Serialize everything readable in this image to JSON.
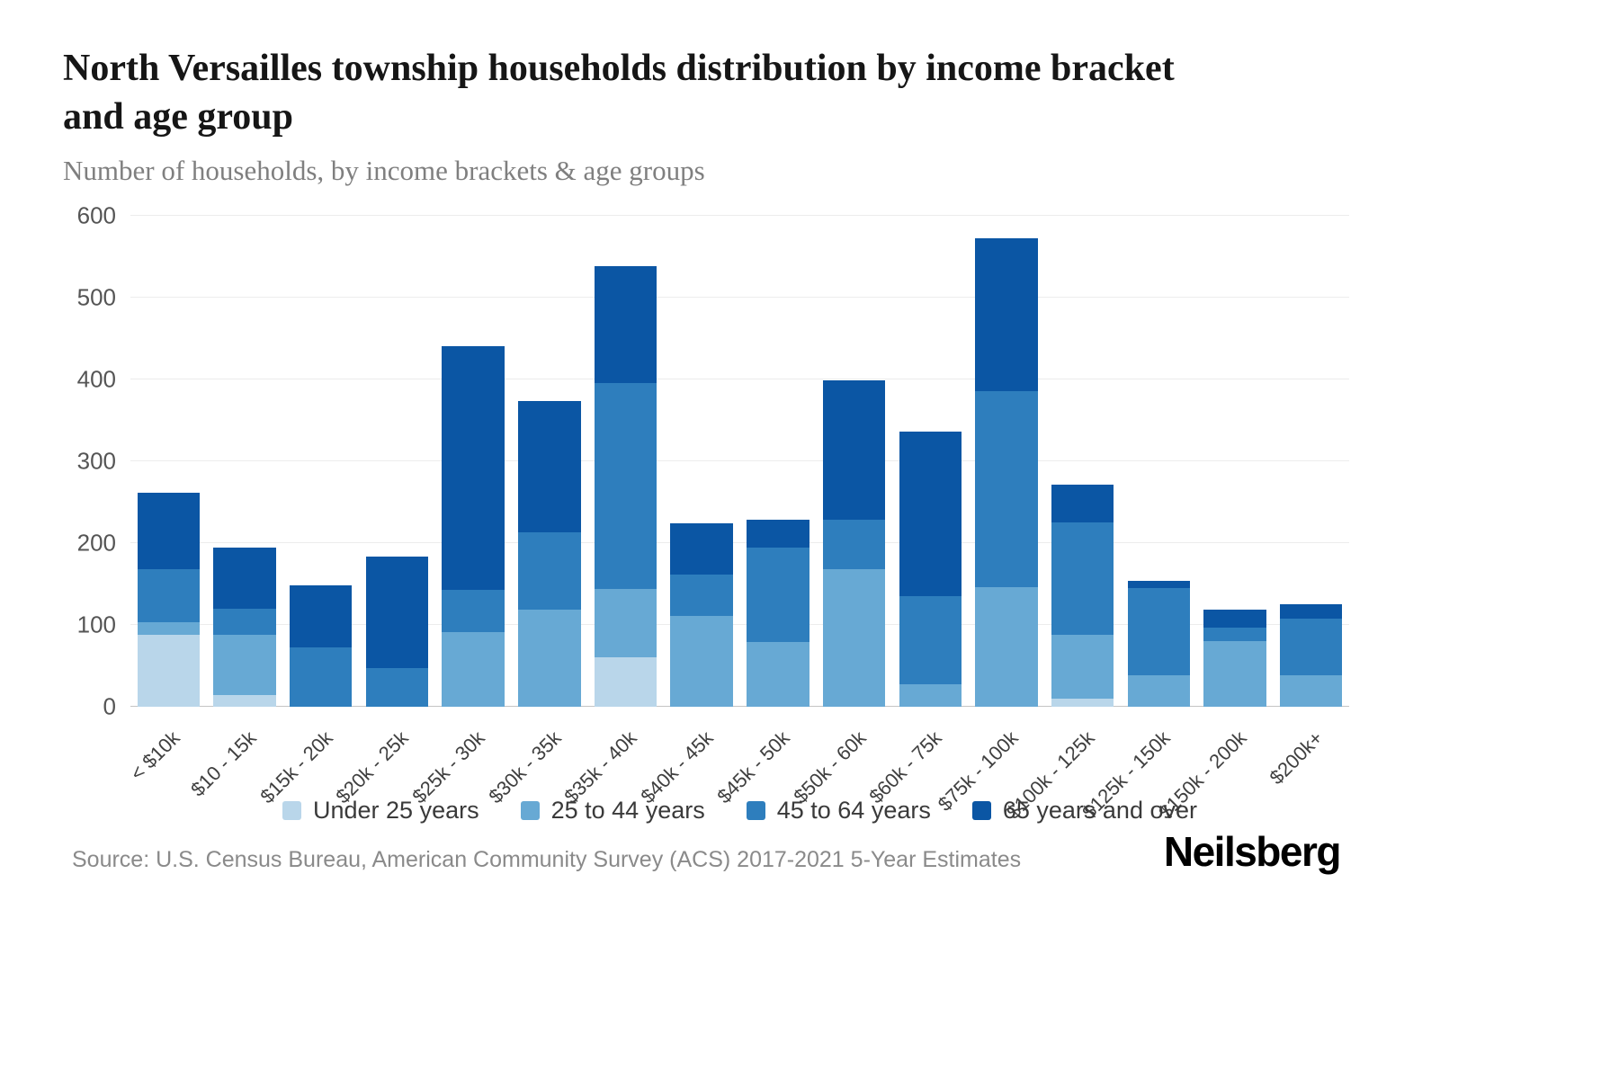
{
  "title": "North Versailles township households distribution by income bracket and age group",
  "subtitle": "Number of households, by income brackets & age groups",
  "source": "Source: U.S. Census Bureau, American Community Survey (ACS) 2017-2021 5-Year Estimates",
  "logo": "Neilsberg",
  "colors": {
    "under_25": "#b9d6ea",
    "25_to_44": "#67a9d4",
    "45_to_64": "#2e7ebd",
    "65_and_over": "#0b56a4",
    "gridline": "#ececec",
    "axis_text": "#555555"
  },
  "chart_data": {
    "type": "bar",
    "stacked": true,
    "title": "North Versailles township households distribution by income bracket and age group",
    "xlabel": "",
    "ylabel": "Number of households",
    "ylim": [
      0,
      600
    ],
    "yticks": [
      0,
      100,
      200,
      300,
      400,
      500,
      600
    ],
    "grid": true,
    "legend_position": "bottom",
    "categories": [
      "< $10k",
      "$10 - 15k",
      "$15k - 20k",
      "$20k - 25k",
      "$25k - 30k",
      "$30k - 35k",
      "$35k - 40k",
      "$40k - 45k",
      "$45k - 50k",
      "$50k - 60k",
      "$60k - 75k",
      "$75k - 100k",
      "$100k - 125k",
      "$125k - 150k",
      "$150k - 200k",
      "$200k+"
    ],
    "series": [
      {
        "name": "Under 25 years",
        "color": "#b9d6ea",
        "values": [
          88,
          14,
          0,
          0,
          0,
          0,
          60,
          0,
          0,
          0,
          0,
          0,
          10,
          0,
          0,
          0
        ]
      },
      {
        "name": "25 to 44 years",
        "color": "#67a9d4",
        "values": [
          15,
          74,
          0,
          0,
          91,
          119,
          84,
          111,
          79,
          168,
          27,
          146,
          78,
          38,
          80,
          39
        ]
      },
      {
        "name": "45 to 64 years",
        "color": "#2e7ebd",
        "values": [
          65,
          32,
          72,
          47,
          52,
          94,
          252,
          51,
          115,
          61,
          108,
          240,
          137,
          107,
          17,
          69
        ]
      },
      {
        "name": "65 years and over",
        "color": "#0b56a4",
        "values": [
          94,
          75,
          76,
          137,
          298,
          161,
          143,
          62,
          35,
          170,
          201,
          187,
          47,
          9,
          22,
          17
        ]
      }
    ]
  }
}
